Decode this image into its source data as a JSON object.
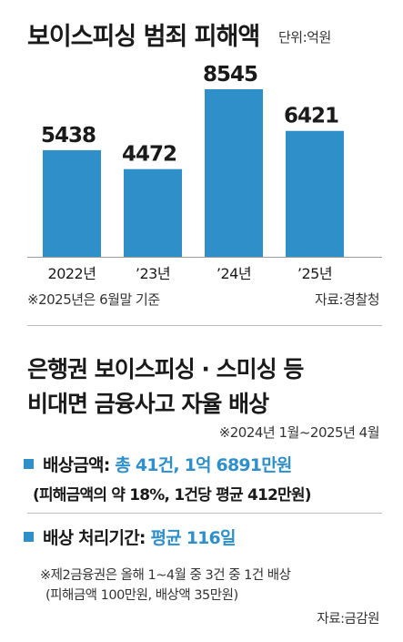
{
  "chart_data": {
    "type": "bar",
    "title": "보이스피싱 범죄 피해액",
    "unit": "단위:억원",
    "categories": [
      "2022년",
      "’23년",
      "’24년",
      "’25년"
    ],
    "values": [
      5438,
      4472,
      8545,
      6421
    ],
    "bar_color": "#2e8fc9",
    "ylim": [
      0,
      8545
    ]
  },
  "chart_footnote": "※2025년은 6월말 기준",
  "chart_source": "자료:경찰청",
  "section": {
    "title_line1": "은행권 보이스피싱 · 스미싱 등",
    "title_line2": "비대면 금융사고 자율 배상",
    "period": "※2024년 1월~2025년 4월",
    "item1_label": "배상금액:",
    "item1_value": "총 41건, 1억 6891만원",
    "item1_sub": "(피해금액의 약 18%, 1건당 평균 412만원)",
    "item2_label": "배상 처리기간:",
    "item2_value": "평균 116일",
    "note_line1": "※제2금융권은 올해 1~4월 중 3건 중 1건 배상",
    "note_line2": "(피해금액 100만원, 배상액 35만원)",
    "source": "자료:금감원"
  },
  "colors": {
    "accent": "#2e8fc9",
    "text": "#1a1a1a"
  }
}
